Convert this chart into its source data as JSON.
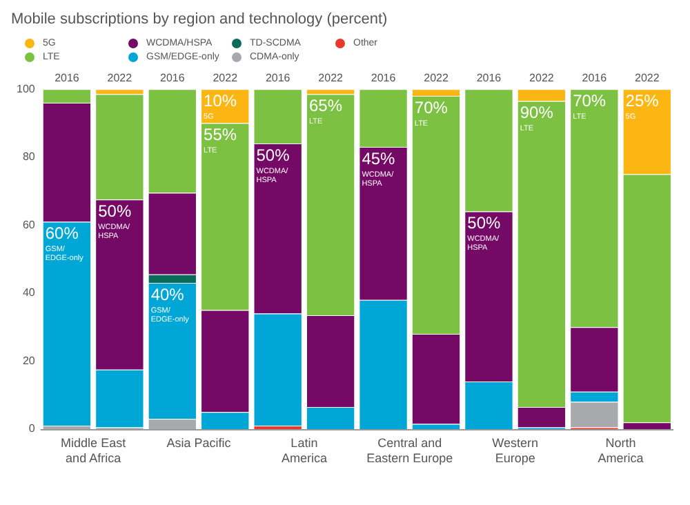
{
  "chart_data": {
    "type": "bar",
    "title": "Mobile subscriptions by region and technology (percent)",
    "categories": [
      "2016",
      "2022",
      "2016",
      "2022",
      "2016",
      "2022",
      "2016",
      "2022",
      "2016",
      "2022",
      "2016",
      "2022"
    ],
    "stacked": true,
    "ylim": [
      0,
      100
    ],
    "yticks": [
      0,
      20,
      40,
      60,
      80,
      100
    ],
    "grid": false,
    "legend": "top left",
    "annotations": [
      "Middle East\nand Africa",
      "Asia Pacific",
      "Latin\nAmerica",
      "Central and\nEastern Europe",
      "Western\nEurope",
      "North\nAmerica"
    ],
    "series": [
      {
        "name": "Other",
        "color": "#e8392d",
        "values": [
          0,
          0,
          0,
          0,
          1,
          0,
          0,
          0,
          0,
          0,
          0.5,
          0
        ]
      },
      {
        "name": "CDMA-only",
        "color": "#a7a9ac",
        "values": [
          1,
          0.5,
          3,
          0,
          0,
          0,
          0,
          0,
          0,
          0,
          7.5,
          0
        ]
      },
      {
        "name": "GSM/EDGE-only",
        "color": "#00a7d6",
        "values": [
          60,
          17,
          40,
          5,
          33,
          6.5,
          38,
          1.5,
          14,
          0.5,
          3,
          0
        ],
        "value_labels": [
          "60%\nGSM/\nEDGE-only",
          null,
          "40%\nGSM/\nEDGE-only",
          null,
          null,
          null,
          null,
          null,
          null,
          null,
          null,
          null
        ]
      },
      {
        "name": "TD-SCDMA",
        "color": "#0b6b5a",
        "values": [
          0,
          0,
          2.5,
          0,
          0,
          0,
          0,
          0,
          0,
          0,
          0,
          0
        ]
      },
      {
        "name": "WCDMA/HSPA",
        "color": "#740966",
        "values": [
          35,
          50,
          24,
          30,
          50,
          27,
          45,
          26.5,
          50,
          6,
          19,
          2
        ],
        "value_labels": [
          null,
          "50%\nWCDMA/\nHSPA",
          null,
          null,
          "50%\nWCDMA/\nHSPA",
          null,
          "45%\nWCDMA/\nHSPA",
          null,
          "50%\nWCDMA/\nHSPA",
          null,
          null,
          null
        ]
      },
      {
        "name": "LTE",
        "color": "#7dc142",
        "values": [
          4,
          31,
          30.5,
          55,
          16,
          65,
          17,
          70,
          36,
          90,
          70,
          73
        ],
        "value_labels": [
          null,
          null,
          null,
          "55%\nLTE",
          null,
          "65%\nLTE",
          null,
          "70%\nLTE",
          null,
          "90%\nLTE",
          "70%\nLTE",
          null
        ]
      },
      {
        "name": "5G",
        "color": "#fbb614",
        "values": [
          0,
          1.5,
          0,
          10,
          0,
          1.5,
          0,
          2,
          0,
          3.5,
          0,
          25
        ],
        "value_labels": [
          null,
          null,
          null,
          "10%\n5G",
          null,
          null,
          null,
          null,
          null,
          null,
          null,
          "25%\n5G"
        ]
      }
    ]
  }
}
